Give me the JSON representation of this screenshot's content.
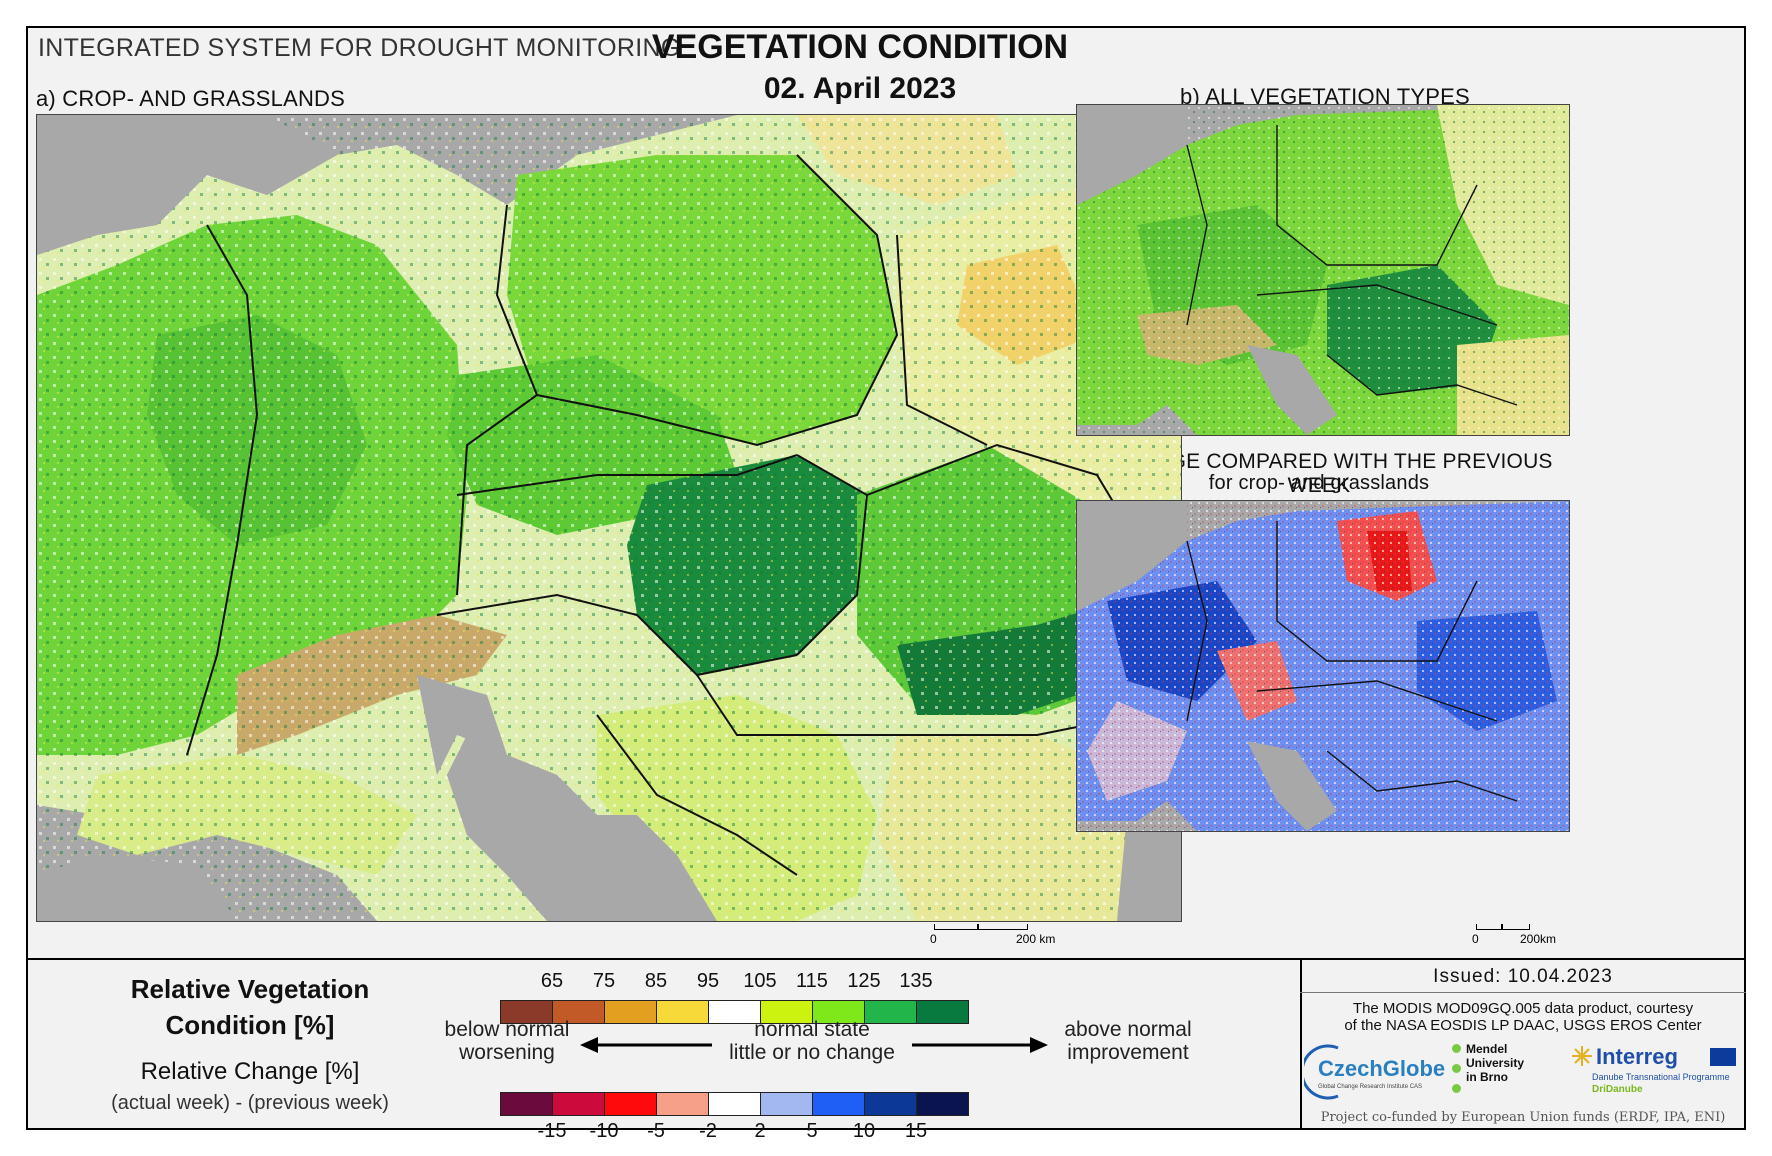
{
  "header": {
    "system_title": "INTEGRATED SYSTEM FOR DROUGHT MONITORING",
    "main_title": "VEGETATION CONDITION",
    "date": "02. April 2023"
  },
  "panels": {
    "a_label": "a) CROP- AND GRASSLANDS",
    "b_label": "b) ALL VEGETATION TYPES",
    "c_label": "c) CHANGE COMPARED WITH THE PREVIOUS WEEK",
    "c_sublabel": "for crop- and grasslands"
  },
  "scalebars": {
    "main_zero": "0",
    "main_end": "200 km",
    "small_zero": "0",
    "small_end": "200km"
  },
  "legend": {
    "rvc_title_line1": "Relative Vegetation",
    "rvc_title_line2": "Condition [%]",
    "rc_title": "Relative Change [%]",
    "rc_subtitle": "(actual week) - (previous week)",
    "rvc_ticks": [
      "65",
      "75",
      "85",
      "95",
      "105",
      "115",
      "125",
      "135"
    ],
    "rvc_colors": [
      "#8b3a2a",
      "#c25a28",
      "#e3a020",
      "#f8d93a",
      "#ffffff",
      "#ccf20f",
      "#7ee81a",
      "#22b54a",
      "#097a3f"
    ],
    "rc_ticks": [
      "-15",
      "-10",
      "-5",
      "-2",
      "2",
      "5",
      "10",
      "15"
    ],
    "rc_colors": [
      "#6b0a3d",
      "#cc0a3c",
      "#ff0a0a",
      "#f6a08a",
      "#ffffff",
      "#a4b8f0",
      "#1f5ff5",
      "#0c3898",
      "#0a1550"
    ],
    "left_top": "below normal",
    "left_bottom": "worsening",
    "mid_top": "normal state",
    "mid_bottom": "little or no change",
    "right_top": "above normal",
    "right_bottom": "improvement"
  },
  "credits": {
    "issued": "Issued: 10.04.2023",
    "modis_line1": "The MODIS MOD09GQ.005 data product, courtesy",
    "modis_line2": "of the NASA EOSDIS LP DAAC, USGS EROS Center",
    "czechglobe": "CzechGlobe",
    "czechglobe_sub": "Global Change Research Institute CAS",
    "mendel_line1": "Mendel",
    "mendel_line2": "University",
    "mendel_line3": "in Brno",
    "interreg": "Interreg",
    "interreg_sub": "Danube Transnational Programme",
    "dridanube": "DriDanube",
    "cofunded": "Project co-funded by European Union funds (ERDF, IPA, ENI)"
  }
}
